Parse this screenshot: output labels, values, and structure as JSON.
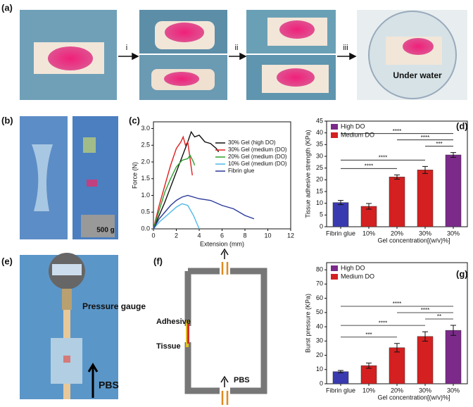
{
  "panels": {
    "a": {
      "label": "(a)",
      "steps": [
        "i",
        "ii",
        "iii"
      ],
      "caption": "Under water"
    },
    "b": {
      "label": "(b)",
      "weight": "500 g"
    },
    "c": {
      "label": "(c)"
    },
    "d": {
      "label": "(d)"
    },
    "e": {
      "label": "(e)",
      "gauge": "Pressure gauge",
      "fluid": "PBS"
    },
    "f": {
      "label": "(f)",
      "adhesive": "Adhesive",
      "tissue": "Tissue",
      "fluid": "PBS"
    },
    "g": {
      "label": "(g)"
    }
  },
  "chart_data": [
    {
      "type": "line",
      "xlabel": "Extension (mm)",
      "ylabel": "Force (N)",
      "xlim": [
        0,
        12
      ],
      "xticks": [
        0,
        2,
        4,
        6,
        8,
        10,
        12
      ],
      "ylim": [
        0,
        3.2
      ],
      "yticks": [
        {
          "value": 0,
          "label": "0.0"
        },
        0.5,
        {
          "value": 1,
          "label": "1.0"
        },
        1.5,
        {
          "value": 2,
          "label": "2.0"
        },
        2.5,
        {
          "value": 3,
          "label": "3.0"
        }
      ],
      "series": [
        {
          "name": "30% Gel (high  DO)",
          "color": "#111111",
          "x": [
            0,
            1,
            2,
            3,
            3.3,
            3.6,
            4,
            4.5,
            5,
            5.5,
            5.7
          ],
          "values": [
            0,
            0.8,
            1.7,
            2.6,
            2.9,
            2.75,
            2.8,
            2.6,
            2.55,
            2.4,
            2.3
          ]
        },
        {
          "name": "30% Gel (medium (DO)",
          "color": "#e02020",
          "x": [
            0,
            0.5,
            1,
            1.5,
            2,
            2.4,
            2.6,
            2.8,
            3,
            3.2,
            3.4
          ],
          "values": [
            0,
            0.7,
            1.3,
            1.9,
            2.4,
            2.6,
            2.75,
            2.5,
            2.6,
            2.1,
            1.6
          ]
        },
        {
          "name": "20% Gel (medium (DO)",
          "color": "#2ca02c",
          "x": [
            0,
            0.5,
            1,
            1.5,
            2,
            2.5,
            3,
            3.2,
            3.5,
            3.6
          ],
          "values": [
            0,
            0.55,
            1.1,
            1.5,
            1.85,
            2.05,
            2.1,
            2.2,
            2.0,
            1.9
          ]
        },
        {
          "name": "10% Gel (medium (DO)",
          "color": "#4fb8e8",
          "x": [
            0,
            0.5,
            1,
            1.5,
            2,
            2.5,
            3,
            3.5,
            4
          ],
          "values": [
            0,
            0.2,
            0.35,
            0.5,
            0.65,
            0.75,
            0.7,
            0.4,
            0
          ]
        },
        {
          "name": "Fibrin glue",
          "color": "#2a3a9a",
          "x": [
            0,
            0.5,
            1,
            1.5,
            2,
            2.5,
            3,
            4,
            5,
            6,
            7,
            8,
            8.8
          ],
          "values": [
            0,
            0.3,
            0.5,
            0.7,
            0.85,
            0.95,
            1.0,
            0.9,
            0.85,
            0.7,
            0.6,
            0.4,
            0.3
          ]
        }
      ]
    },
    {
      "type": "bar",
      "ylabel": "Tissue adhesive strength (KPa)",
      "xlabel": "Gel concentration[(w/v)%]",
      "categories": [
        "Fibrin glue",
        "10%",
        "20%",
        "30%",
        "30%"
      ],
      "values": [
        10.3,
        8.7,
        21.2,
        24.2,
        30.6
      ],
      "errors": [
        0.9,
        1.2,
        0.9,
        1.5,
        1.0
      ],
      "colors": [
        "#3a3ab0",
        "#d42020",
        "#d42020",
        "#d42020",
        "#7b2a8a"
      ],
      "legend": [
        {
          "name": "High DO",
          "color": "#7b2a8a"
        },
        {
          "name": "Medium DO",
          "color": "#d42020"
        }
      ],
      "ylim": [
        0,
        45
      ],
      "yticks": [
        0,
        5,
        10,
        15,
        20,
        25,
        30,
        35,
        40,
        45
      ],
      "brackets": [
        {
          "from": 0,
          "to": 4,
          "label": "****"
        },
        {
          "from": 2,
          "to": 4,
          "label": "****"
        },
        {
          "from": 3,
          "to": 4,
          "label": "***"
        },
        {
          "from": 0,
          "to": 3,
          "label": "****"
        },
        {
          "from": 0,
          "to": 2,
          "label": "****"
        }
      ]
    },
    {
      "type": "bar",
      "ylabel": "Burst pressure (KPa)",
      "xlabel": "Gel concentration[(w/v)%]",
      "categories": [
        "Fibrin glue",
        "10%",
        "20%",
        "30%",
        "30%"
      ],
      "values": [
        8.5,
        12.7,
        25.3,
        33.2,
        37.5
      ],
      "errors": [
        0.8,
        1.8,
        3.0,
        3.3,
        3.5
      ],
      "colors": [
        "#3a3ab0",
        "#d42020",
        "#d42020",
        "#d42020",
        "#7b2a8a"
      ],
      "legend": [
        {
          "name": "High DO",
          "color": "#7b2a8a"
        },
        {
          "name": "Medium DO",
          "color": "#d42020"
        }
      ],
      "ylim": [
        0,
        85
      ],
      "yticks": [
        0,
        10,
        20,
        30,
        40,
        50,
        60,
        70,
        80
      ],
      "brackets": [
        {
          "from": 0,
          "to": 4,
          "label": "****"
        },
        {
          "from": 2,
          "to": 4,
          "label": "****"
        },
        {
          "from": 3,
          "to": 4,
          "label": "**"
        },
        {
          "from": 0,
          "to": 3,
          "label": "****"
        },
        {
          "from": 0,
          "to": 2,
          "label": "***"
        }
      ]
    }
  ]
}
